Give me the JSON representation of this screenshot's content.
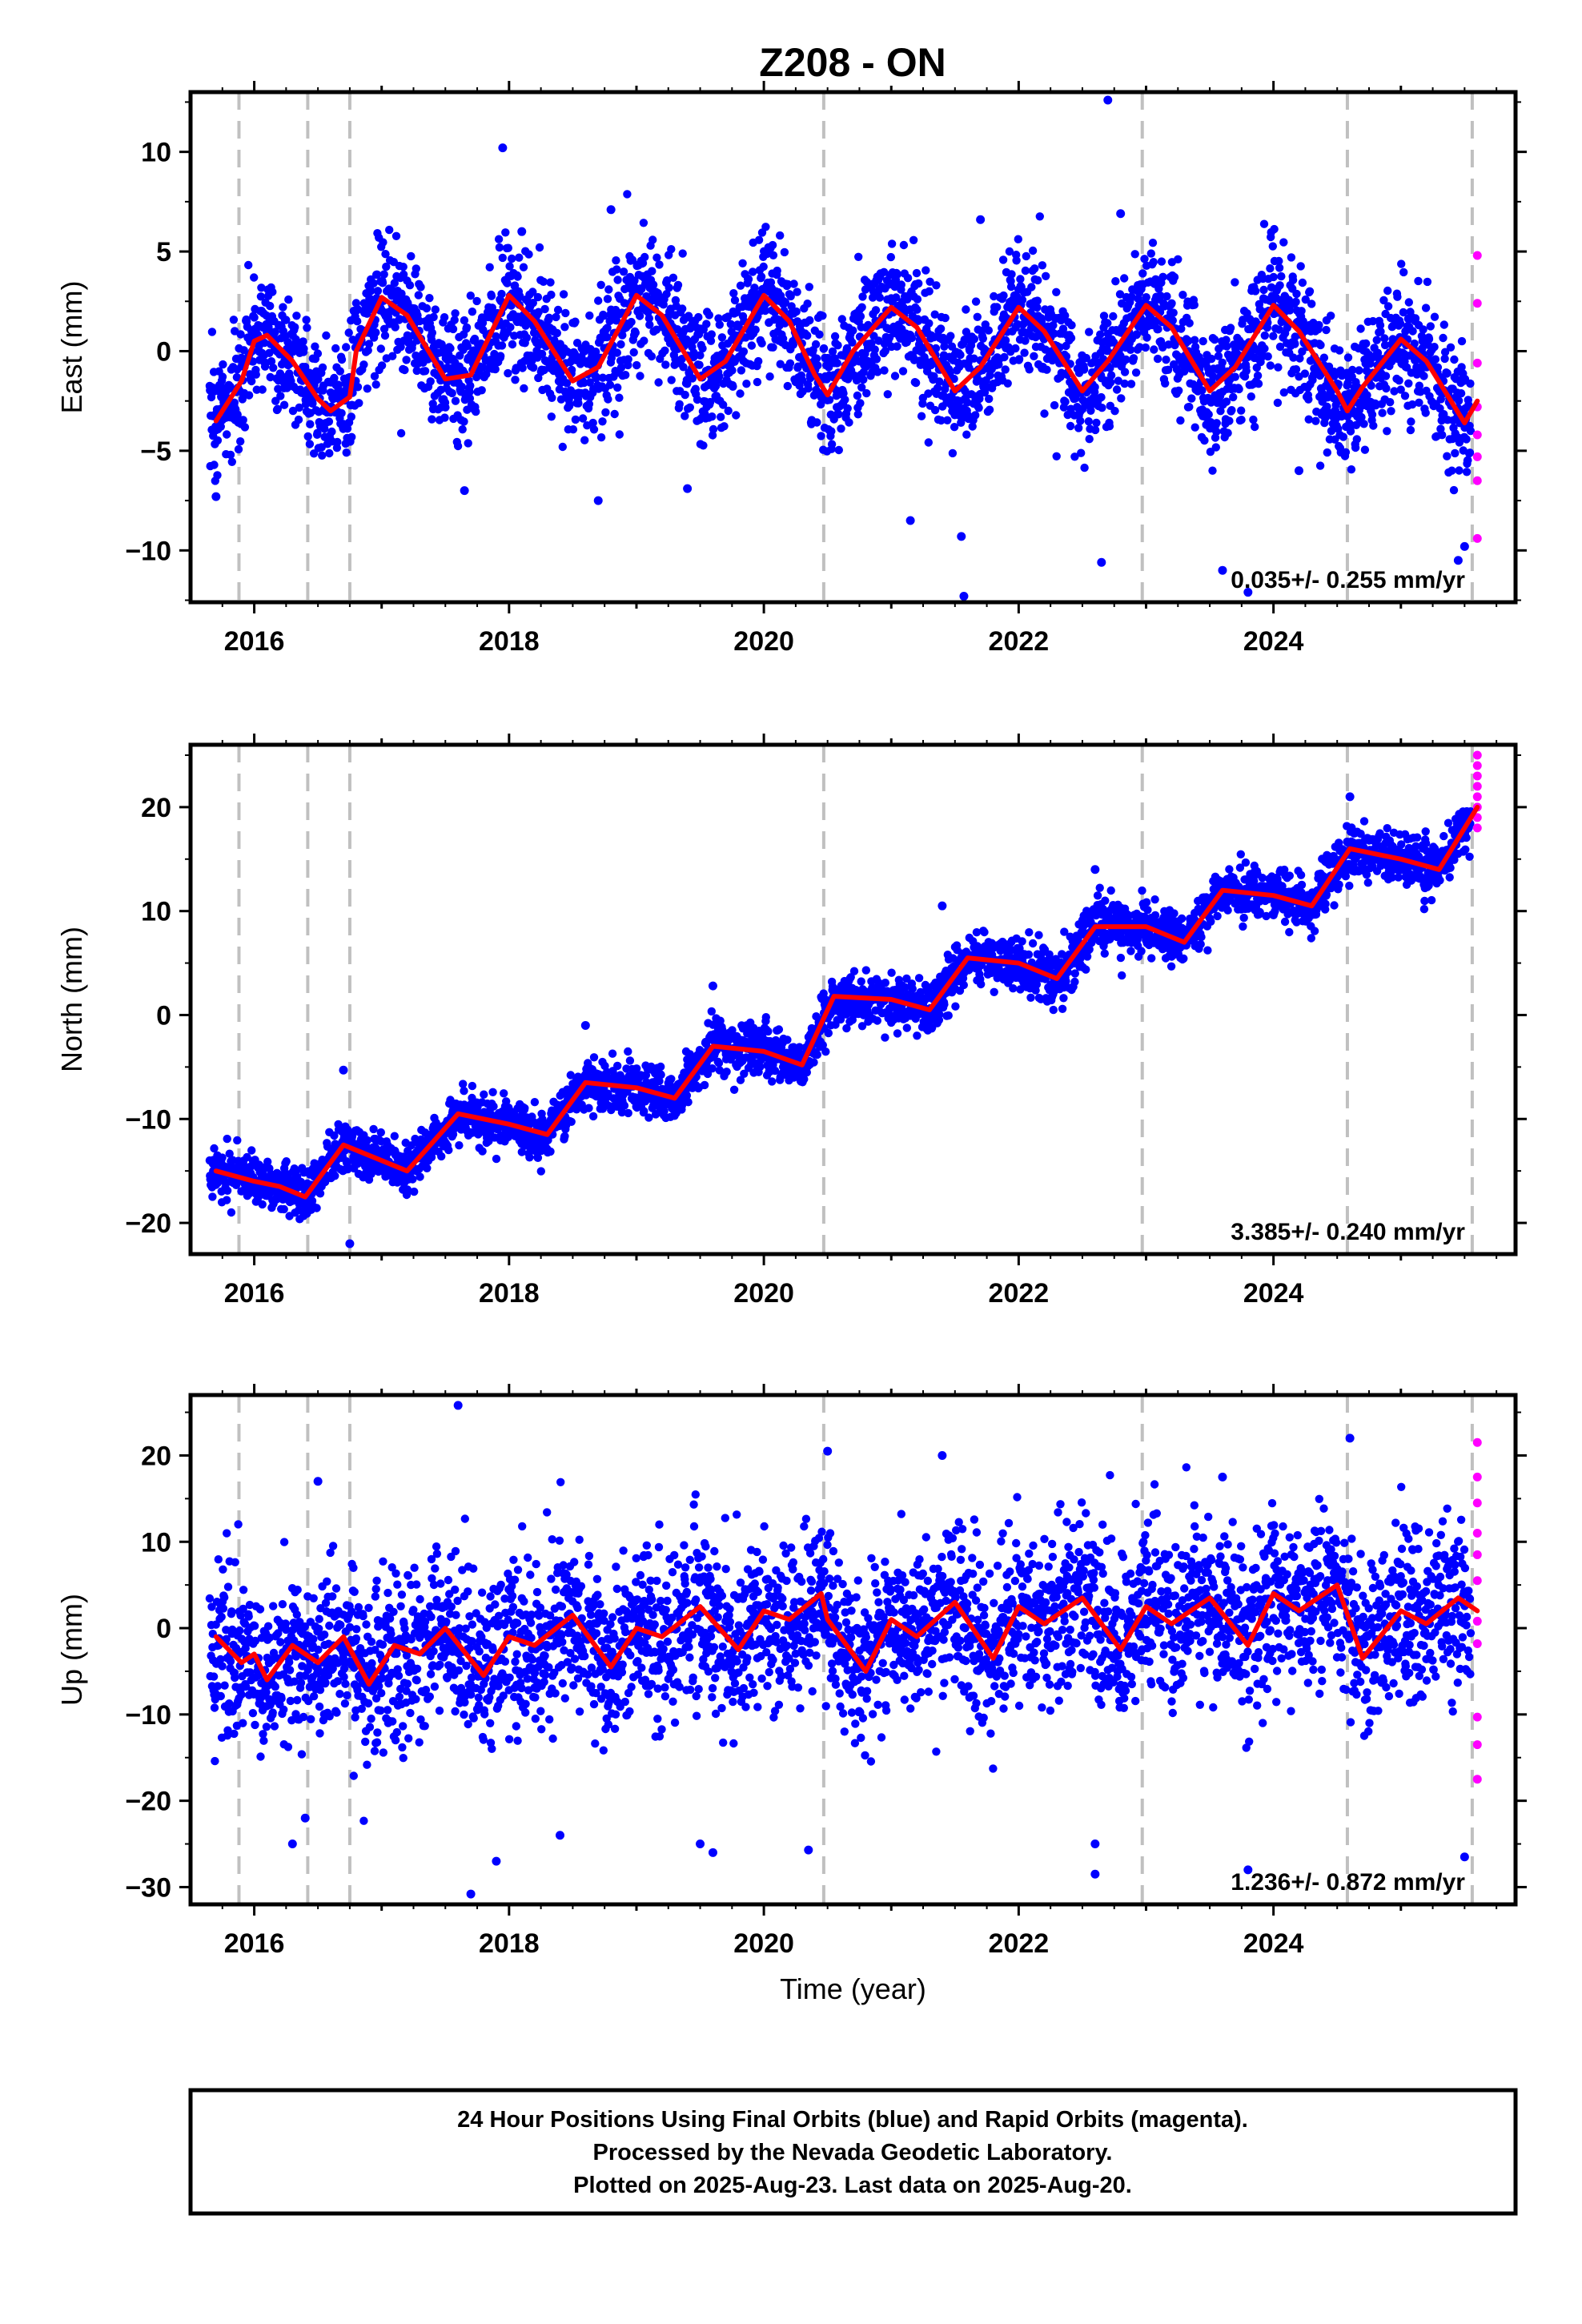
{
  "title": "Z208 - ON",
  "colors": {
    "final_points": "#0000ff",
    "rapid_points": "#ff00ff",
    "model_line": "#ff0000",
    "event_lines": "#c0c0c0"
  },
  "footer": {
    "line1": "24 Hour Positions Using Final Orbits (blue) and Rapid Orbits (magenta).",
    "line2": "Processed by the Nevada Geodetic Laboratory.",
    "line3": "Plotted on 2025-Aug-23. Last data on 2025-Aug-20."
  },
  "chart_data": [
    {
      "type": "scatter",
      "component": "east",
      "ylabel": "East (mm)",
      "xlabel": "",
      "xlim": [
        2015.5,
        2025.9
      ],
      "ylim": [
        -12.6,
        13
      ],
      "xticks": [
        2016,
        2018,
        2020,
        2022,
        2024
      ],
      "yticks": [
        -10,
        -5,
        0,
        5,
        10
      ],
      "rate_text": "0.035+/- 0.255 mm/yr",
      "trend": 0.035,
      "amplitude": 2.0,
      "noise_sd": 1.6,
      "event_lines": [
        2015.88,
        2016.42,
        2016.75,
        2020.47,
        2022.97,
        2024.58,
        2025.56
      ],
      "offsets": [
        [
          2015.88,
          0
        ],
        [
          2016.42,
          0
        ],
        [
          2016.75,
          2.0
        ],
        [
          2020.47,
          -1.5
        ],
        [
          2022.97,
          0
        ],
        [
          2024.58,
          0.4
        ],
        [
          2025.56,
          0
        ]
      ],
      "model_points": [
        [
          2015.7,
          -3.5
        ],
        [
          2015.9,
          -1.5
        ],
        [
          2016.0,
          0.5
        ],
        [
          2016.1,
          0.8
        ],
        [
          2016.3,
          -0.5
        ],
        [
          2016.5,
          -2.4
        ],
        [
          2016.6,
          -3.0
        ],
        [
          2016.75,
          -2.3
        ],
        [
          2016.8,
          0.0
        ],
        [
          2017.0,
          2.7
        ],
        [
          2017.2,
          1.8
        ],
        [
          2017.5,
          -1.4
        ],
        [
          2017.7,
          -1.2
        ],
        [
          2018.0,
          2.8
        ],
        [
          2018.2,
          1.5
        ],
        [
          2018.5,
          -1.5
        ],
        [
          2018.7,
          -0.8
        ],
        [
          2019.0,
          2.8
        ],
        [
          2019.2,
          1.8
        ],
        [
          2019.5,
          -1.4
        ],
        [
          2019.7,
          -0.5
        ],
        [
          2020.0,
          2.8
        ],
        [
          2020.2,
          1.5
        ],
        [
          2020.4,
          -1.2
        ],
        [
          2020.5,
          -2.2
        ],
        [
          2020.7,
          0.0
        ],
        [
          2021.0,
          2.2
        ],
        [
          2021.2,
          1.2
        ],
        [
          2021.5,
          -2.0
        ],
        [
          2021.7,
          -0.8
        ],
        [
          2022.0,
          2.2
        ],
        [
          2022.2,
          1.0
        ],
        [
          2022.5,
          -2.0
        ],
        [
          2022.7,
          -0.5
        ],
        [
          2023.0,
          2.3
        ],
        [
          2023.2,
          1.2
        ],
        [
          2023.5,
          -2.0
        ],
        [
          2023.7,
          -0.8
        ],
        [
          2024.0,
          2.3
        ],
        [
          2024.2,
          1.0
        ],
        [
          2024.5,
          -2.0
        ],
        [
          2024.58,
          -3.0
        ],
        [
          2024.7,
          -1.8
        ],
        [
          2025.0,
          0.6
        ],
        [
          2025.2,
          -0.5
        ],
        [
          2025.5,
          -3.6
        ],
        [
          2025.6,
          -2.5
        ]
      ],
      "outliers": [
        [
          2015.7,
          -7.3
        ],
        [
          2017.65,
          -7.0
        ],
        [
          2017.95,
          10.2
        ],
        [
          2018.1,
          6.0
        ],
        [
          2018.7,
          -7.5
        ],
        [
          2018.8,
          7.1
        ],
        [
          2019.4,
          -6.9
        ],
        [
          2021.15,
          -8.5
        ],
        [
          2021.55,
          -9.3
        ],
        [
          2021.57,
          -12.3
        ],
        [
          2021.7,
          6.6
        ],
        [
          2022.7,
          12.6
        ],
        [
          2022.65,
          -10.6
        ],
        [
          2022.8,
          6.9
        ],
        [
          2023.6,
          -11.0
        ],
        [
          2023.8,
          -12.1
        ],
        [
          2024.2,
          -6.0
        ],
        [
          2025.45,
          -10.5
        ],
        [
          2025.5,
          -9.8
        ]
      ],
      "rapid_points": [
        [
          2025.6,
          4.8
        ],
        [
          2025.6,
          2.4
        ],
        [
          2025.6,
          -0.6
        ],
        [
          2025.6,
          -2.8
        ],
        [
          2025.6,
          -4.2
        ],
        [
          2025.6,
          -5.3
        ],
        [
          2025.6,
          -6.5
        ],
        [
          2025.6,
          -9.4
        ]
      ]
    },
    {
      "type": "scatter",
      "component": "north",
      "ylabel": "North (mm)",
      "xlabel": "",
      "xlim": [
        2015.5,
        2025.9
      ],
      "ylim": [
        -23,
        26
      ],
      "xticks": [
        2016,
        2018,
        2020,
        2022,
        2024
      ],
      "yticks": [
        -20,
        -10,
        0,
        10,
        20
      ],
      "rate_text": "3.385+/- 0.240 mm/yr",
      "trend": 3.385,
      "amplitude": 1.3,
      "noise_sd": 1.2,
      "event_lines": [
        2015.88,
        2016.42,
        2016.75,
        2020.47,
        2022.97,
        2024.58,
        2025.56
      ],
      "offsets": [
        [
          2015.88,
          0
        ],
        [
          2016.42,
          0
        ],
        [
          2016.75,
          0
        ],
        [
          2020.47,
          0
        ],
        [
          2022.97,
          0
        ],
        [
          2024.58,
          0
        ],
        [
          2025.56,
          0
        ]
      ],
      "model_points": [
        [
          2015.7,
          -15.0
        ],
        [
          2016.0,
          -16.0
        ],
        [
          2016.2,
          -16.5
        ],
        [
          2016.4,
          -17.5
        ],
        [
          2016.7,
          -12.5
        ],
        [
          2016.9,
          -13.5
        ],
        [
          2017.2,
          -15.0
        ],
        [
          2017.6,
          -9.5
        ],
        [
          2018.0,
          -10.5
        ],
        [
          2018.3,
          -11.5
        ],
        [
          2018.6,
          -6.5
        ],
        [
          2019.0,
          -7.0
        ],
        [
          2019.3,
          -8.0
        ],
        [
          2019.6,
          -3.0
        ],
        [
          2020.0,
          -3.5
        ],
        [
          2020.3,
          -4.8
        ],
        [
          2020.55,
          1.8
        ],
        [
          2021.0,
          1.5
        ],
        [
          2021.3,
          0.5
        ],
        [
          2021.6,
          5.5
        ],
        [
          2022.0,
          5.0
        ],
        [
          2022.3,
          3.5
        ],
        [
          2022.6,
          8.5
        ],
        [
          2023.0,
          8.5
        ],
        [
          2023.3,
          7.0
        ],
        [
          2023.6,
          12.0
        ],
        [
          2024.0,
          11.5
        ],
        [
          2024.3,
          10.5
        ],
        [
          2024.6,
          16.0
        ],
        [
          2025.0,
          15.0
        ],
        [
          2025.3,
          14.0
        ],
        [
          2025.6,
          20.0
        ]
      ],
      "outliers": [
        [
          2016.75,
          -22.0
        ],
        [
          2016.7,
          -5.3
        ],
        [
          2018.6,
          -1.0
        ],
        [
          2019.6,
          2.8
        ],
        [
          2021.4,
          10.5
        ],
        [
          2022.6,
          14.0
        ],
        [
          2024.6,
          21.0
        ]
      ],
      "rapid_points": [
        [
          2025.6,
          25.0
        ],
        [
          2025.6,
          24.0
        ],
        [
          2025.6,
          23.0
        ],
        [
          2025.6,
          22.0
        ],
        [
          2025.6,
          21.0
        ],
        [
          2025.6,
          20.0
        ],
        [
          2025.6,
          19.0
        ],
        [
          2025.6,
          18.0
        ]
      ]
    },
    {
      "type": "scatter",
      "component": "up",
      "ylabel": "Up (mm)",
      "xlabel": "Time (year)",
      "xlim": [
        2015.5,
        2025.9
      ],
      "ylim": [
        -32,
        27
      ],
      "xticks": [
        2016,
        2018,
        2020,
        2022,
        2024
      ],
      "yticks": [
        -30,
        -20,
        -10,
        0,
        10,
        20
      ],
      "rate_text": "1.236+/- 0.872 mm/yr",
      "trend": 1.236,
      "amplitude": 2.5,
      "noise_sd": 4.8,
      "event_lines": [
        2015.88,
        2016.42,
        2016.75,
        2020.47,
        2022.97,
        2024.58,
        2025.56
      ],
      "offsets": [
        [
          2015.88,
          0
        ],
        [
          2016.42,
          0
        ],
        [
          2016.75,
          0
        ],
        [
          2020.47,
          -3.0
        ],
        [
          2022.97,
          0
        ],
        [
          2024.58,
          -4.0
        ],
        [
          2025.56,
          0
        ]
      ],
      "model_points": [
        [
          2015.7,
          -1.0
        ],
        [
          2015.9,
          -4.0
        ],
        [
          2016.0,
          -3.0
        ],
        [
          2016.1,
          -6.0
        ],
        [
          2016.3,
          -2.0
        ],
        [
          2016.5,
          -4.0
        ],
        [
          2016.7,
          -1.0
        ],
        [
          2016.9,
          -6.5
        ],
        [
          2017.1,
          -2.0
        ],
        [
          2017.3,
          -3.0
        ],
        [
          2017.5,
          0.0
        ],
        [
          2017.8,
          -5.5
        ],
        [
          2018.0,
          -1.0
        ],
        [
          2018.2,
          -2.0
        ],
        [
          2018.5,
          1.5
        ],
        [
          2018.8,
          -4.5
        ],
        [
          2019.0,
          0.0
        ],
        [
          2019.2,
          -1.0
        ],
        [
          2019.5,
          2.5
        ],
        [
          2019.8,
          -2.5
        ],
        [
          2020.0,
          2.0
        ],
        [
          2020.2,
          1.0
        ],
        [
          2020.45,
          4.0
        ],
        [
          2020.5,
          1.0
        ],
        [
          2020.8,
          -5.0
        ],
        [
          2021.0,
          1.0
        ],
        [
          2021.2,
          -1.0
        ],
        [
          2021.5,
          3.0
        ],
        [
          2021.8,
          -3.5
        ],
        [
          2022.0,
          2.5
        ],
        [
          2022.2,
          0.5
        ],
        [
          2022.5,
          3.5
        ],
        [
          2022.8,
          -2.5
        ],
        [
          2023.0,
          2.5
        ],
        [
          2023.2,
          0.5
        ],
        [
          2023.5,
          3.5
        ],
        [
          2023.8,
          -2.0
        ],
        [
          2024.0,
          4.0
        ],
        [
          2024.2,
          2.0
        ],
        [
          2024.5,
          5.0
        ],
        [
          2024.7,
          -3.5
        ],
        [
          2025.0,
          2.0
        ],
        [
          2025.2,
          0.5
        ],
        [
          2025.45,
          3.5
        ],
        [
          2025.6,
          2.0
        ]
      ],
      "outliers": [
        [
          2017.6,
          25.8
        ],
        [
          2017.7,
          -30.8
        ],
        [
          2017.9,
          -27.0
        ],
        [
          2018.4,
          -24.0
        ],
        [
          2019.5,
          -25.0
        ],
        [
          2019.6,
          -26.0
        ],
        [
          2020.35,
          -25.7
        ],
        [
          2020.5,
          20.5
        ],
        [
          2021.4,
          20.0
        ],
        [
          2022.6,
          -28.5
        ],
        [
          2022.6,
          -25.0
        ],
        [
          2023.6,
          17.5
        ],
        [
          2023.8,
          -28.0
        ],
        [
          2024.6,
          22.0
        ],
        [
          2025.5,
          -26.5
        ],
        [
          2016.3,
          -25.0
        ],
        [
          2016.5,
          17.0
        ],
        [
          2016.4,
          -22.0
        ]
      ],
      "rapid_points": [
        [
          2025.6,
          21.5
        ],
        [
          2025.6,
          17.5
        ],
        [
          2025.6,
          14.5
        ],
        [
          2025.6,
          11.0
        ],
        [
          2025.6,
          8.5
        ],
        [
          2025.6,
          5.5
        ],
        [
          2025.6,
          0.8
        ],
        [
          2025.6,
          -1.8
        ],
        [
          2025.6,
          -10.3
        ],
        [
          2025.6,
          -13.5
        ],
        [
          2025.6,
          -17.5
        ]
      ]
    }
  ]
}
